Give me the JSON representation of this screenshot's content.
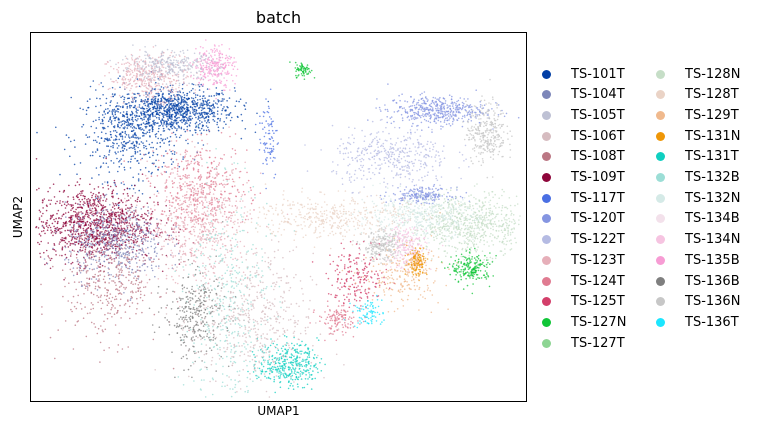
{
  "chart_data": {
    "type": "scatter",
    "title": "batch",
    "xlabel": "UMAP1",
    "ylabel": "UMAP2",
    "grid": false,
    "x_ticks": [],
    "y_ticks": [],
    "legend": {
      "placement": "right, outside plot, two columns",
      "columns": 2,
      "entries": [
        {
          "name": "TS-101T",
          "color": "#023fa5"
        },
        {
          "name": "TS-104T",
          "color": "#7d87b9"
        },
        {
          "name": "TS-105T",
          "color": "#bec1d4"
        },
        {
          "name": "TS-106T",
          "color": "#d6bcc0"
        },
        {
          "name": "TS-108T",
          "color": "#bb7784"
        },
        {
          "name": "TS-109T",
          "color": "#8e063b"
        },
        {
          "name": "TS-117T",
          "color": "#4a6fe3"
        },
        {
          "name": "TS-120T",
          "color": "#8595e1"
        },
        {
          "name": "TS-122T",
          "color": "#b5bbe3"
        },
        {
          "name": "TS-123T",
          "color": "#e6afb9"
        },
        {
          "name": "TS-124T",
          "color": "#e07b91"
        },
        {
          "name": "TS-125T",
          "color": "#d33f6a"
        },
        {
          "name": "TS-127N",
          "color": "#11c638"
        },
        {
          "name": "TS-127T",
          "color": "#8dd593"
        },
        {
          "name": "TS-128N",
          "color": "#c6dec7"
        },
        {
          "name": "TS-128T",
          "color": "#ead3c6"
        },
        {
          "name": "TS-129T",
          "color": "#f0b98d"
        },
        {
          "name": "TS-131N",
          "color": "#ef9708"
        },
        {
          "name": "TS-131T",
          "color": "#0fcfc0"
        },
        {
          "name": "TS-132B",
          "color": "#9cded6"
        },
        {
          "name": "TS-132N",
          "color": "#d5eae7"
        },
        {
          "name": "TS-134B",
          "color": "#f3e1eb"
        },
        {
          "name": "TS-134N",
          "color": "#f6c4e1"
        },
        {
          "name": "TS-135B",
          "color": "#f79cd4"
        },
        {
          "name": "TS-136B",
          "color": "#7f7f7f"
        },
        {
          "name": "TS-136N",
          "color": "#c7c7c7"
        },
        {
          "name": "TS-136T",
          "color": "#1ce6ff"
        }
      ]
    },
    "clusters": [
      {
        "series": "TS-101T",
        "cx": 0.29,
        "cy": 0.79,
        "sx": 0.06,
        "sy": 0.03,
        "n": 900
      },
      {
        "series": "TS-101T",
        "cx": 0.2,
        "cy": 0.72,
        "sx": 0.05,
        "sy": 0.06,
        "n": 500
      },
      {
        "series": "TS-109T",
        "cx": 0.13,
        "cy": 0.48,
        "sx": 0.06,
        "sy": 0.05,
        "n": 1100
      },
      {
        "series": "TS-104T",
        "cx": 0.17,
        "cy": 0.43,
        "sx": 0.05,
        "sy": 0.05,
        "n": 500
      },
      {
        "series": "TS-108T",
        "cx": 0.16,
        "cy": 0.33,
        "sx": 0.05,
        "sy": 0.08,
        "n": 400
      },
      {
        "series": "TS-123T",
        "cx": 0.24,
        "cy": 0.88,
        "sx": 0.04,
        "sy": 0.03,
        "n": 400
      },
      {
        "series": "TS-135B",
        "cx": 0.37,
        "cy": 0.91,
        "sx": 0.02,
        "sy": 0.03,
        "n": 250
      },
      {
        "series": "TS-105T",
        "cx": 0.28,
        "cy": 0.91,
        "sx": 0.05,
        "sy": 0.02,
        "n": 300
      },
      {
        "series": "TS-123T",
        "cx": 0.34,
        "cy": 0.48,
        "sx": 0.05,
        "sy": 0.08,
        "n": 600
      },
      {
        "series": "TS-124T",
        "cx": 0.34,
        "cy": 0.58,
        "sx": 0.05,
        "sy": 0.06,
        "n": 400
      },
      {
        "series": "TS-132B",
        "cx": 0.4,
        "cy": 0.27,
        "sx": 0.04,
        "sy": 0.16,
        "n": 400
      },
      {
        "series": "TS-136B",
        "cx": 0.33,
        "cy": 0.23,
        "sx": 0.03,
        "sy": 0.06,
        "n": 300
      },
      {
        "series": "TS-131T",
        "cx": 0.52,
        "cy": 0.1,
        "sx": 0.03,
        "sy": 0.03,
        "n": 350
      },
      {
        "series": "TS-106T",
        "cx": 0.45,
        "cy": 0.22,
        "sx": 0.06,
        "sy": 0.09,
        "n": 500
      },
      {
        "series": "TS-117T",
        "cx": 0.48,
        "cy": 0.72,
        "sx": 0.01,
        "sy": 0.06,
        "n": 80
      },
      {
        "series": "TS-127N",
        "cx": 0.55,
        "cy": 0.9,
        "sx": 0.008,
        "sy": 0.01,
        "n": 70
      },
      {
        "series": "TS-120T",
        "cx": 0.82,
        "cy": 0.79,
        "sx": 0.05,
        "sy": 0.02,
        "n": 450
      },
      {
        "series": "TS-136N",
        "cx": 0.92,
        "cy": 0.73,
        "sx": 0.02,
        "sy": 0.04,
        "n": 300
      },
      {
        "series": "TS-122T",
        "cx": 0.73,
        "cy": 0.66,
        "sx": 0.06,
        "sy": 0.04,
        "n": 400
      },
      {
        "series": "TS-120T",
        "cx": 0.79,
        "cy": 0.56,
        "sx": 0.03,
        "sy": 0.01,
        "n": 200
      },
      {
        "series": "TS-128N",
        "cx": 0.89,
        "cy": 0.48,
        "sx": 0.06,
        "sy": 0.04,
        "n": 700
      },
      {
        "series": "TS-132N",
        "cx": 0.78,
        "cy": 0.5,
        "sx": 0.06,
        "sy": 0.03,
        "n": 400
      },
      {
        "series": "TS-131N",
        "cx": 0.78,
        "cy": 0.38,
        "sx": 0.01,
        "sy": 0.02,
        "n": 150
      },
      {
        "series": "TS-127N",
        "cx": 0.89,
        "cy": 0.36,
        "sx": 0.02,
        "sy": 0.02,
        "n": 200
      },
      {
        "series": "TS-136N",
        "cx": 0.71,
        "cy": 0.42,
        "sx": 0.02,
        "sy": 0.02,
        "n": 250
      },
      {
        "series": "TS-134N",
        "cx": 0.76,
        "cy": 0.42,
        "sx": 0.02,
        "sy": 0.03,
        "n": 200
      },
      {
        "series": "TS-125T",
        "cx": 0.66,
        "cy": 0.33,
        "sx": 0.03,
        "sy": 0.04,
        "n": 200
      },
      {
        "series": "TS-136T",
        "cx": 0.68,
        "cy": 0.24,
        "sx": 0.015,
        "sy": 0.02,
        "n": 80
      },
      {
        "series": "TS-128T",
        "cx": 0.6,
        "cy": 0.5,
        "sx": 0.08,
        "sy": 0.03,
        "n": 400
      },
      {
        "series": "TS-129T",
        "cx": 0.75,
        "cy": 0.34,
        "sx": 0.04,
        "sy": 0.04,
        "n": 200
      },
      {
        "series": "TS-124T",
        "cx": 0.62,
        "cy": 0.22,
        "sx": 0.02,
        "sy": 0.02,
        "n": 120
      }
    ]
  }
}
